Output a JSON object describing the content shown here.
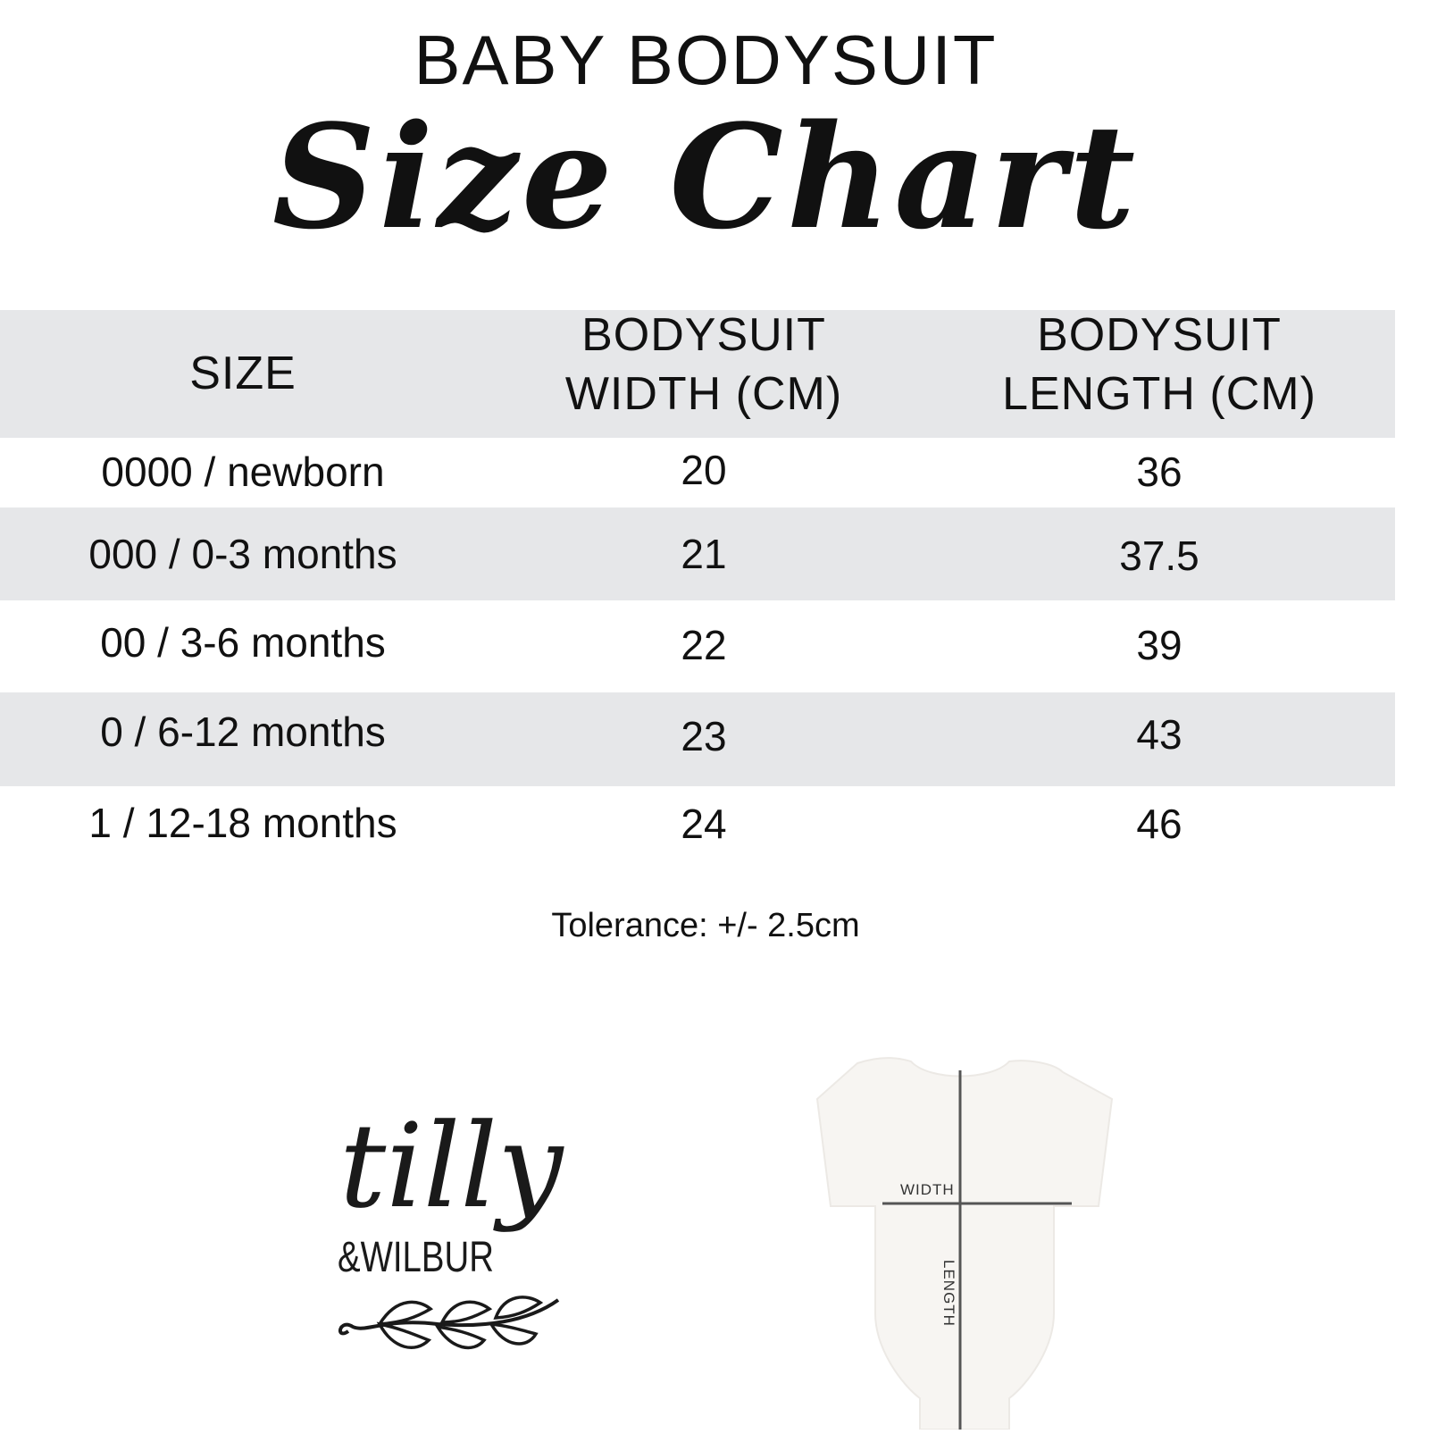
{
  "heading": {
    "line1": "BABY BODYSUIT",
    "line2": "Size Chart"
  },
  "table": {
    "columns": [
      "SIZE",
      "BODYSUIT WIDTH (CM)",
      "BODYSUIT LENGTH (CM)"
    ],
    "column_lines": [
      [
        "SIZE"
      ],
      [
        "BODYSUIT",
        "WIDTH (CM)"
      ],
      [
        "BODYSUIT",
        "LENGTH (CM)"
      ]
    ],
    "rows": [
      [
        "0000 / newborn",
        "20",
        "36"
      ],
      [
        "000 / 0-3 months",
        "21",
        "37.5"
      ],
      [
        "00 / 3-6 months",
        "22",
        "39"
      ],
      [
        "0 / 6-12 months",
        "23",
        "43"
      ],
      [
        "1 / 12-18 months",
        "24",
        "46"
      ]
    ],
    "band_color": "#e6e7e9"
  },
  "tolerance": "Tolerance: +/- 2.5cm",
  "logo": {
    "line1": "tilly",
    "line2": "&WILBUR"
  },
  "diagram": {
    "width_label": "WIDTH",
    "length_label": "LENGTH"
  }
}
